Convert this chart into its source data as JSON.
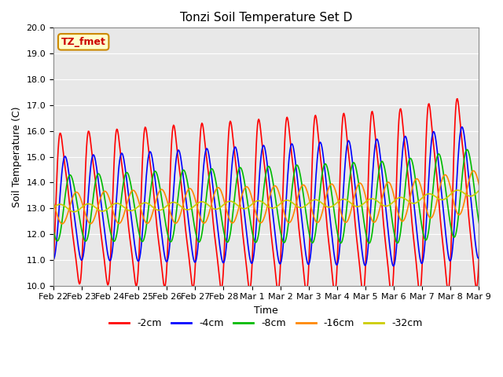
{
  "title": "Tonzi Soil Temperature Set D",
  "xlabel": "Time",
  "ylabel": "Soil Temperature (C)",
  "ylim": [
    10.0,
    20.0
  ],
  "yticks": [
    10.0,
    11.0,
    12.0,
    13.0,
    14.0,
    15.0,
    16.0,
    17.0,
    18.0,
    19.0,
    20.0
  ],
  "series_labels": [
    "-2cm",
    "-4cm",
    "-8cm",
    "-16cm",
    "-32cm"
  ],
  "series_colors": [
    "#ff0000",
    "#0000ff",
    "#00bb00",
    "#ff8800",
    "#cccc00"
  ],
  "label_box_text": "TZ_fmet",
  "label_box_facecolor": "#ffffcc",
  "label_box_edgecolor": "#cc8800",
  "background_color": "#e8e8e8",
  "date_labels": [
    "Feb 22",
    "Feb 23",
    "Feb 24",
    "Feb 25",
    "Feb 26",
    "Feb 27",
    "Feb 28",
    "Mar 1",
    "Mar 2",
    "Mar 3",
    "Mar 4",
    "Mar 5",
    "Mar 6",
    "Mar 7",
    "Mar 8",
    "Mar 9"
  ],
  "date_positions": [
    0,
    1,
    2,
    3,
    4,
    5,
    6,
    7,
    8,
    9,
    10,
    11,
    12,
    13,
    14,
    15
  ]
}
